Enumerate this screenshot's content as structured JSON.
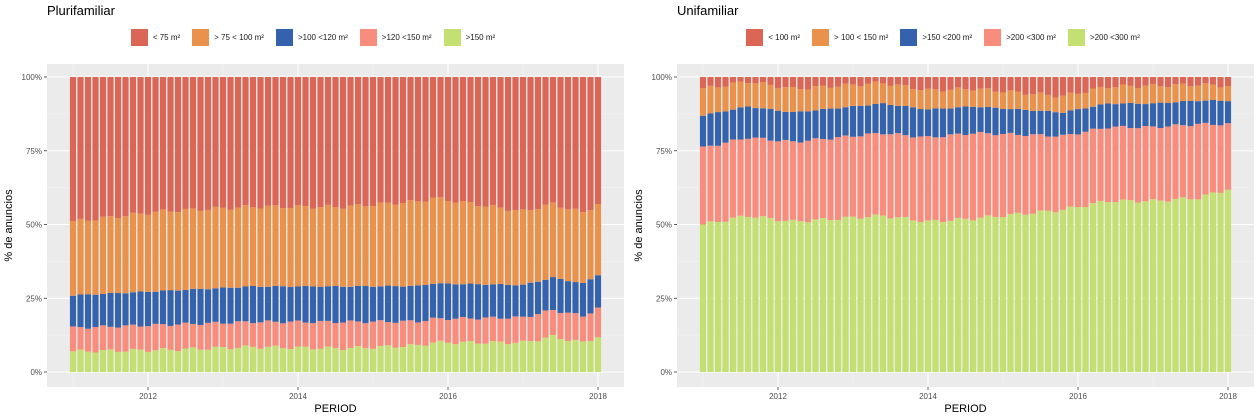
{
  "chart_data": [
    {
      "type": "bar",
      "stacked": true,
      "title": "Plurifamiliar",
      "xlabel": "PERIOD",
      "ylabel": "% de anuncios",
      "ylim": [
        0,
        1
      ],
      "yticks": [
        "0%",
        "25%",
        "50%",
        "75%",
        "100%"
      ],
      "xticks": [
        "2012",
        "2014",
        "2016",
        "2018"
      ],
      "xrange": [
        2011.0,
        2018.0
      ],
      "grid": true,
      "legend_position": "top",
      "num_periods": 71,
      "series": [
        {
          "name": ">150 m²",
          "color": "#c5e072",
          "anchors": [
            [
              0,
              0.07
            ],
            [
              12,
              0.075
            ],
            [
              24,
              0.085
            ],
            [
              36,
              0.08
            ],
            [
              46,
              0.09
            ],
            [
              48,
              0.1
            ],
            [
              60,
              0.1
            ],
            [
              64,
              0.12
            ],
            [
              68,
              0.1
            ],
            [
              70,
              0.12
            ]
          ]
        },
        {
          "name": ">120 <150 m²",
          "color": "#f98d7d",
          "anchors": [
            [
              0,
              0.08
            ],
            [
              12,
              0.085
            ],
            [
              24,
              0.085
            ],
            [
              36,
              0.09
            ],
            [
              48,
              0.08
            ],
            [
              60,
              0.085
            ],
            [
              64,
              0.09
            ],
            [
              68,
              0.09
            ],
            [
              70,
              0.095
            ]
          ]
        },
        {
          "name": ">100 <120 m²",
          "color": "#3462ad",
          "anchors": [
            [
              0,
              0.11
            ],
            [
              12,
              0.115
            ],
            [
              24,
              0.12
            ],
            [
              36,
              0.12
            ],
            [
              48,
              0.12
            ],
            [
              60,
              0.11
            ],
            [
              64,
              0.11
            ],
            [
              68,
              0.11
            ],
            [
              70,
              0.115
            ]
          ]
        },
        {
          "name": "> 75 < 100 m²",
          "color": "#ea924b",
          "anchors": [
            [
              0,
              0.25
            ],
            [
              12,
              0.27
            ],
            [
              24,
              0.27
            ],
            [
              36,
              0.27
            ],
            [
              48,
              0.29
            ],
            [
              60,
              0.25
            ],
            [
              64,
              0.25
            ],
            [
              68,
              0.24
            ],
            [
              70,
              0.24
            ]
          ]
        },
        {
          "name": "< 75 m²",
          "color": "#dc6656",
          "fill_remaining": true
        }
      ]
    },
    {
      "type": "bar",
      "stacked": true,
      "title": "Unifamiliar",
      "xlabel": "PERIOD",
      "ylabel": "% de anuncios",
      "ylim": [
        0,
        1
      ],
      "yticks": [
        "0%",
        "25%",
        "50%",
        "75%",
        "100%"
      ],
      "xticks": [
        "2012",
        "2014",
        "2016",
        "2018"
      ],
      "xrange": [
        2011.0,
        2018.0
      ],
      "grid": true,
      "legend_position": "top",
      "num_periods": 71,
      "series": [
        {
          "name": ">200 <300 m²",
          "color": "#c5e072",
          "anchors": [
            [
              0,
              0.5
            ],
            [
              6,
              0.53
            ],
            [
              12,
              0.51
            ],
            [
              24,
              0.53
            ],
            [
              30,
              0.51
            ],
            [
              36,
              0.52
            ],
            [
              48,
              0.55
            ],
            [
              54,
              0.58
            ],
            [
              60,
              0.58
            ],
            [
              66,
              0.59
            ],
            [
              70,
              0.62
            ]
          ]
        },
        {
          "name": ">200 <300 m²",
          "color": "#f98d7d",
          "anchors": [
            [
              0,
              0.26
            ],
            [
              12,
              0.27
            ],
            [
              24,
              0.28
            ],
            [
              36,
              0.29
            ],
            [
              48,
              0.25
            ],
            [
              60,
              0.25
            ],
            [
              66,
              0.25
            ],
            [
              70,
              0.22
            ]
          ]
        },
        {
          "name": ">150 <200 m²",
          "color": "#3462ad",
          "anchors": [
            [
              0,
              0.11
            ],
            [
              12,
              0.1
            ],
            [
              24,
              0.1
            ],
            [
              36,
              0.09
            ],
            [
              48,
              0.08
            ],
            [
              60,
              0.08
            ],
            [
              70,
              0.08
            ]
          ]
        },
        {
          "name": "> 100 < 150 m²",
          "color": "#ea924b",
          "anchors": [
            [
              0,
              0.09
            ],
            [
              12,
              0.08
            ],
            [
              24,
              0.07
            ],
            [
              36,
              0.06
            ],
            [
              48,
              0.055
            ],
            [
              60,
              0.06
            ],
            [
              70,
              0.05
            ]
          ]
        },
        {
          "name": "< 100 m²",
          "color": "#dc6656",
          "fill_remaining": true
        }
      ]
    }
  ]
}
